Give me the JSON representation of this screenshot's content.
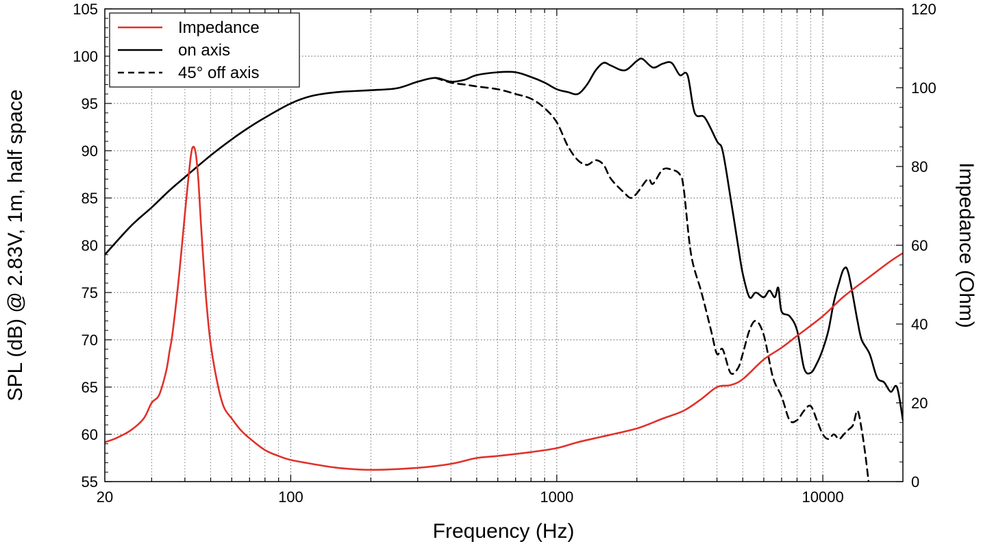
{
  "chart_data": {
    "type": "line",
    "title": "",
    "xlabel": "Frequency (Hz)",
    "ylabel_left": "SPL (dB) @ 2.83V, 1m, half space",
    "ylabel_right": "Impedance (Ohm)",
    "xscale": "log",
    "xlim": [
      20,
      20000
    ],
    "ylim_left": [
      55,
      105
    ],
    "ylim_right": [
      0,
      120
    ],
    "x_ticks": [
      20,
      100,
      1000,
      10000
    ],
    "x_tick_labels": [
      "20",
      "100",
      "1000",
      "10000"
    ],
    "y_left_ticks": [
      55,
      60,
      65,
      70,
      75,
      80,
      85,
      90,
      95,
      100,
      105
    ],
    "y_left_tick_labels": [
      "55",
      "60",
      "65",
      "70",
      "75",
      "80",
      "85",
      "90",
      "95",
      "100",
      "105"
    ],
    "y_right_ticks": [
      0,
      20,
      40,
      60,
      80,
      100,
      120
    ],
    "y_right_tick_labels": [
      "0",
      "20",
      "40",
      "60",
      "80",
      "100",
      "120"
    ],
    "grid": true,
    "legend_position": "top-left",
    "series": [
      {
        "name": "Impedance",
        "axis": "right",
        "color": "#e0312a",
        "dash": "solid",
        "x": [
          20,
          22,
          25,
          28,
          30,
          32,
          34,
          35,
          36,
          38,
          40,
          42,
          43,
          44,
          45,
          46,
          48,
          50,
          53,
          56,
          60,
          65,
          70,
          80,
          90,
          100,
          120,
          150,
          200,
          300,
          400,
          500,
          600,
          800,
          1000,
          1200,
          1500,
          2000,
          2500,
          3000,
          3500,
          4000,
          4500,
          5000,
          6000,
          7000,
          8000,
          10000,
          12000,
          15000,
          18000,
          20000
        ],
        "y": [
          10,
          11,
          13,
          16,
          20,
          22,
          28,
          33,
          38,
          52,
          68,
          82,
          85,
          83,
          76,
          65,
          47,
          35,
          25,
          19,
          16,
          13,
          11,
          8,
          6.5,
          5.5,
          4.5,
          3.5,
          3,
          3.5,
          4.5,
          6,
          6.5,
          7.5,
          8.5,
          10,
          11.5,
          13.5,
          16,
          18,
          21,
          24,
          24.5,
          26,
          31,
          34,
          37,
          42,
          47,
          52,
          56,
          58
        ]
      },
      {
        "name": "on axis",
        "axis": "left",
        "color": "#000000",
        "dash": "solid",
        "x": [
          20,
          25,
          30,
          35,
          40,
          50,
          60,
          70,
          80,
          100,
          120,
          150,
          200,
          250,
          300,
          350,
          400,
          450,
          500,
          600,
          700,
          800,
          900,
          1000,
          1100,
          1200,
          1300,
          1400,
          1500,
          1600,
          1800,
          2000,
          2100,
          2300,
          2500,
          2700,
          2900,
          3100,
          3300,
          3600,
          4000,
          4200,
          4500,
          4800,
          5000,
          5300,
          5600,
          6000,
          6300,
          6600,
          6800,
          7000,
          7500,
          8000,
          8500,
          9000,
          9500,
          10000,
          10500,
          11000,
          11500,
          12000,
          12500,
          13500,
          14000,
          15000,
          16000,
          17000,
          18000,
          19000,
          20000
        ],
        "y": [
          79,
          82,
          84,
          85.8,
          87.2,
          89.5,
          91.2,
          92.5,
          93.5,
          95,
          95.8,
          96.2,
          96.4,
          96.6,
          97.3,
          97.7,
          97.3,
          97.5,
          98,
          98.3,
          98.3,
          97.8,
          97.2,
          96.5,
          96.2,
          96,
          97,
          98.5,
          99.3,
          99,
          98.5,
          99.5,
          99.7,
          98.8,
          99.2,
          99.3,
          98,
          98,
          94,
          93.5,
          91,
          90,
          85,
          80,
          77,
          74.5,
          75,
          74.5,
          75.2,
          74.5,
          75.5,
          73,
          72.5,
          71,
          67,
          66.5,
          67.5,
          69,
          71,
          74,
          76,
          77.5,
          77,
          72,
          70,
          68.5,
          66,
          65.5,
          64.5,
          65,
          61.5
        ]
      },
      {
        "name": "45° off axis",
        "axis": "left",
        "color": "#000000",
        "dash": "dashed",
        "x": [
          350,
          400,
          450,
          500,
          600,
          700,
          800,
          900,
          1000,
          1100,
          1200,
          1300,
          1400,
          1500,
          1600,
          1800,
          1900,
          2000,
          2200,
          2300,
          2500,
          2700,
          2900,
          3000,
          3200,
          3500,
          3800,
          4000,
          4200,
          4500,
          4800,
          5000,
          5300,
          5600,
          6000,
          6500,
          7000,
          7500,
          8000,
          8500,
          9000,
          9500,
          10000,
          10500,
          11000,
          11500,
          12000,
          12500,
          13000,
          13500,
          14000,
          14500,
          15000
        ],
        "y": [
          97.7,
          97.2,
          97,
          96.8,
          96.5,
          96,
          95.5,
          94.5,
          93,
          90.5,
          89,
          88.5,
          89,
          88.5,
          87,
          85.5,
          85,
          85.5,
          87,
          86.5,
          88,
          88,
          87.5,
          86,
          79,
          75,
          71,
          68.5,
          69,
          66.5,
          67,
          68.5,
          71,
          72,
          70.5,
          66,
          64,
          61.5,
          61.5,
          62.5,
          63,
          61.5,
          60,
          59.5,
          60,
          59.5,
          60,
          60.5,
          61,
          62.5,
          60.5,
          57.5,
          54
        ]
      }
    ]
  }
}
